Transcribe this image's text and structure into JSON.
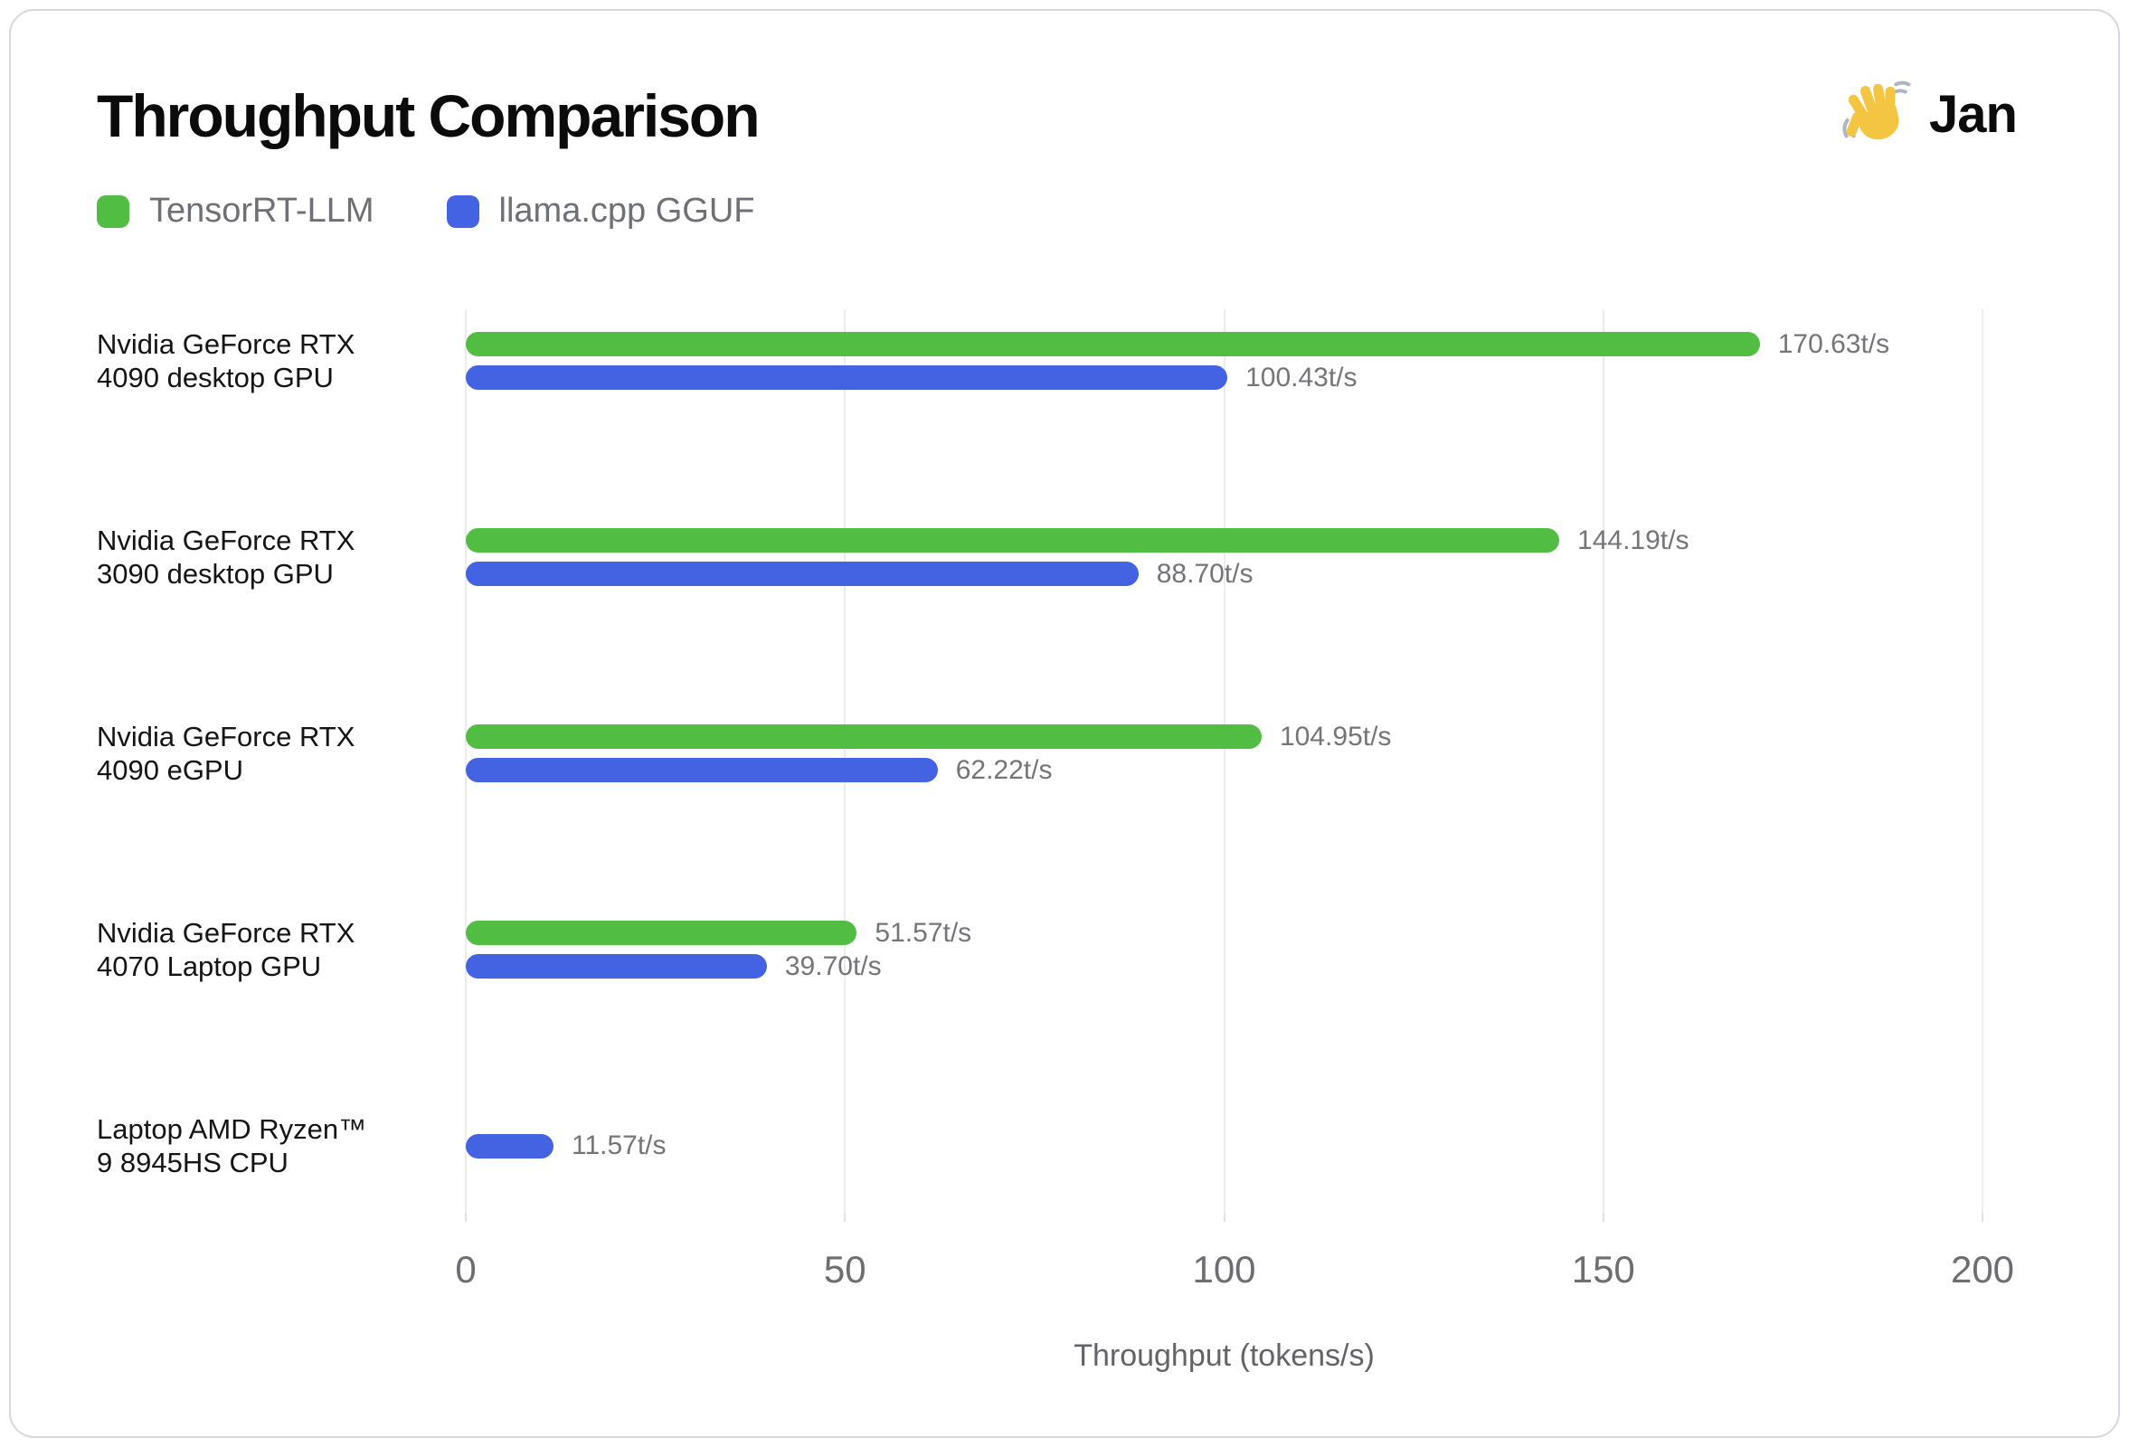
{
  "header": {
    "title": "Throughput Comparison",
    "brand_name": "Jan"
  },
  "legend": [
    {
      "label": "TensorRT-LLM",
      "color": "#52BD43"
    },
    {
      "label": "llama.cpp GGUF",
      "color": "#4363E2"
    }
  ],
  "chart_data": {
    "type": "bar",
    "orientation": "horizontal",
    "title": "Throughput Comparison",
    "xlabel": "Throughput (tokens/s)",
    "unit": "t/s",
    "xlim": [
      0,
      200
    ],
    "x_ticks": [
      "0",
      "50",
      "100",
      "150",
      "200"
    ],
    "grid": true,
    "legend_position": "top-left",
    "categories": [
      [
        "Nvidia GeForce RTX",
        "4090 desktop GPU"
      ],
      [
        "Nvidia GeForce RTX",
        "3090 desktop GPU"
      ],
      [
        "Nvidia GeForce RTX",
        "4090 eGPU"
      ],
      [
        "Nvidia GeForce RTX",
        "4070 Laptop GPU"
      ],
      [
        "Laptop AMD Ryzen™",
        "9 8945HS CPU"
      ]
    ],
    "series": [
      {
        "name": "TensorRT-LLM",
        "color": "#52BD43",
        "values": [
          170.63,
          144.19,
          104.95,
          51.57,
          null
        ],
        "labels": [
          "170.63t/s",
          "144.19t/s",
          "104.95t/s",
          "51.57t/s",
          null
        ]
      },
      {
        "name": "llama.cpp GGUF",
        "color": "#4363E2",
        "values": [
          100.43,
          88.7,
          62.22,
          39.7,
          11.57
        ],
        "labels": [
          "100.43t/s",
          "88.70t/s",
          "62.22t/s",
          "39.70t/s",
          "11.57t/s"
        ]
      }
    ]
  }
}
